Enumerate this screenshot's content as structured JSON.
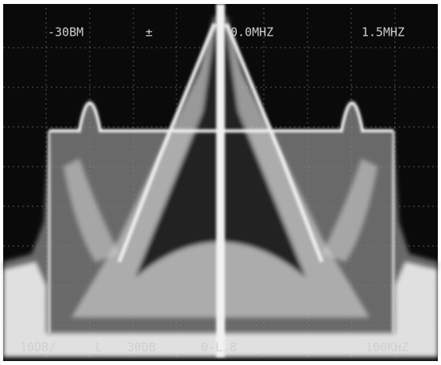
{
  "screen": {
    "top_labels": [
      "-30BM",
      "±",
      "0.0MHZ",
      "1.5MHZ"
    ],
    "bottom_labels": [
      "10DB/",
      "L",
      "30DB",
      "0-L.8",
      "100KHZ"
    ]
  }
}
